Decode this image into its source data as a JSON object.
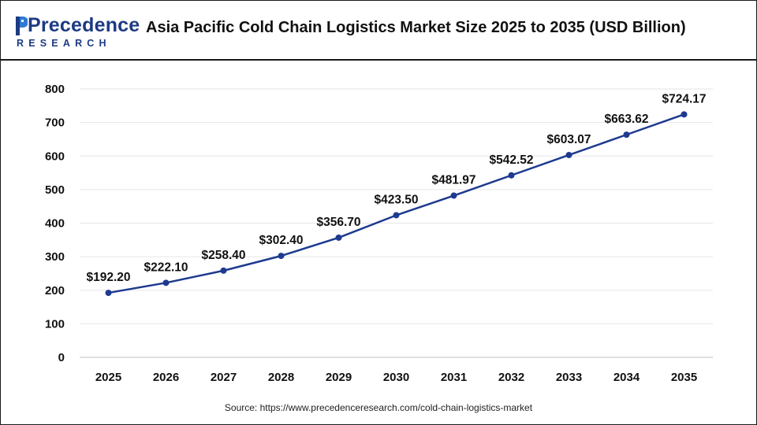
{
  "header": {
    "logo_word": "Precedence",
    "logo_sub": "RESEARCH",
    "title": "Asia Pacific Cold Chain Logistics Market Size 2025 to 2035 (USD Billion)"
  },
  "colors": {
    "line": "#1d3a8f",
    "brand": "#1d3a82",
    "accent": "#2e7ad1"
  },
  "chart_data": {
    "type": "line",
    "title": "Asia Pacific Cold Chain Logistics Market Size 2025 to 2035 (USD Billion)",
    "xlabel": "",
    "ylabel": "",
    "ylim": [
      0,
      800
    ],
    "yticks": [
      0,
      100,
      200,
      300,
      400,
      500,
      600,
      700,
      800
    ],
    "grid": true,
    "legend": "none",
    "categories": [
      "2025",
      "2026",
      "2027",
      "2028",
      "2029",
      "2030",
      "2031",
      "2032",
      "2033",
      "2034",
      "2035"
    ],
    "values": [
      192.2,
      222.1,
      258.4,
      302.4,
      356.7,
      423.5,
      481.97,
      542.52,
      603.07,
      663.62,
      724.17
    ],
    "data_labels": [
      "$192.20",
      "$222.10",
      "$258.40",
      "$302.40",
      "$356.70",
      "$423.50",
      "$481.97",
      "$542.52",
      "$603.07",
      "$663.62",
      "$724.17"
    ]
  },
  "source": "Source: https://www.precedenceresearch.com/cold-chain-logistics-market"
}
